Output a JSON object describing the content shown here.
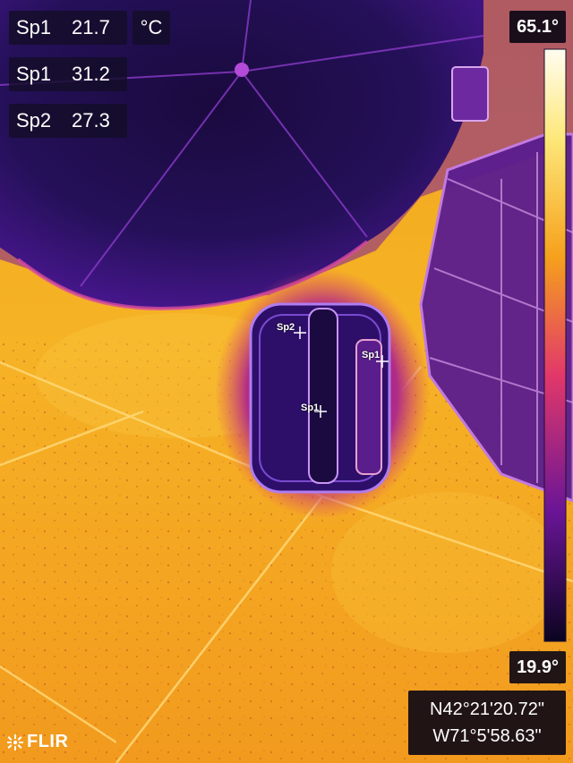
{
  "spot_readouts": [
    {
      "label": "Sp1",
      "value": "21.7"
    },
    {
      "label": "Sp1",
      "value": "31.2"
    },
    {
      "label": "Sp2",
      "value": "27.3"
    }
  ],
  "unit": "°C",
  "scale": {
    "max": "65.1°",
    "min": "19.9°"
  },
  "gps": {
    "lat": "N42°21'20.72\"",
    "lon": "W71°5'58.63\""
  },
  "brand": "FLIR",
  "markers": [
    {
      "label": "Sp2"
    },
    {
      "label": "Sp1"
    },
    {
      "label": "Sp1"
    }
  ],
  "palette": {
    "hot": "#fffbe8",
    "warm": "#f6b01a",
    "mid": "#e2386a",
    "cool": "#5a1596",
    "cold": "#15083a"
  }
}
